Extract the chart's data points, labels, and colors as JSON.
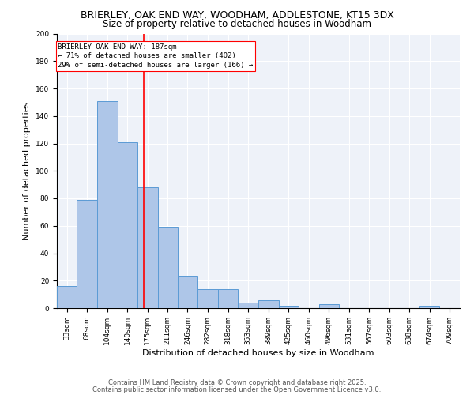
{
  "title1": "BRIERLEY, OAK END WAY, WOODHAM, ADDLESTONE, KT15 3DX",
  "title2": "Size of property relative to detached houses in Woodham",
  "xlabel": "Distribution of detached houses by size in Woodham",
  "ylabel": "Number of detached properties",
  "bar_edges": [
    33,
    68,
    104,
    140,
    175,
    211,
    246,
    282,
    318,
    353,
    389,
    425,
    460,
    496,
    531,
    567,
    603,
    638,
    674,
    709,
    745
  ],
  "bar_heights": [
    16,
    79,
    151,
    121,
    88,
    59,
    23,
    14,
    14,
    4,
    6,
    2,
    0,
    3,
    0,
    0,
    0,
    0,
    2,
    0
  ],
  "bar_color": "#aec6e8",
  "bar_edgecolor": "#5b9bd5",
  "vline_x": 187,
  "vline_color": "red",
  "annotation_text": "BRIERLEY OAK END WAY: 187sqm\n← 71% of detached houses are smaller (402)\n29% of semi-detached houses are larger (166) →",
  "annotation_box_color": "white",
  "annotation_box_edgecolor": "red",
  "ylim": [
    0,
    200
  ],
  "yticks": [
    0,
    20,
    40,
    60,
    80,
    100,
    120,
    140,
    160,
    180,
    200
  ],
  "footer1": "Contains HM Land Registry data © Crown copyright and database right 2025.",
  "footer2": "Contains public sector information licensed under the Open Government Licence v3.0.",
  "bg_color": "#eef2f9",
  "grid_color": "white",
  "title_fontsize": 9,
  "subtitle_fontsize": 8.5,
  "axis_label_fontsize": 8,
  "tick_fontsize": 6.5,
  "annotation_fontsize": 6.5,
  "footer_fontsize": 6
}
